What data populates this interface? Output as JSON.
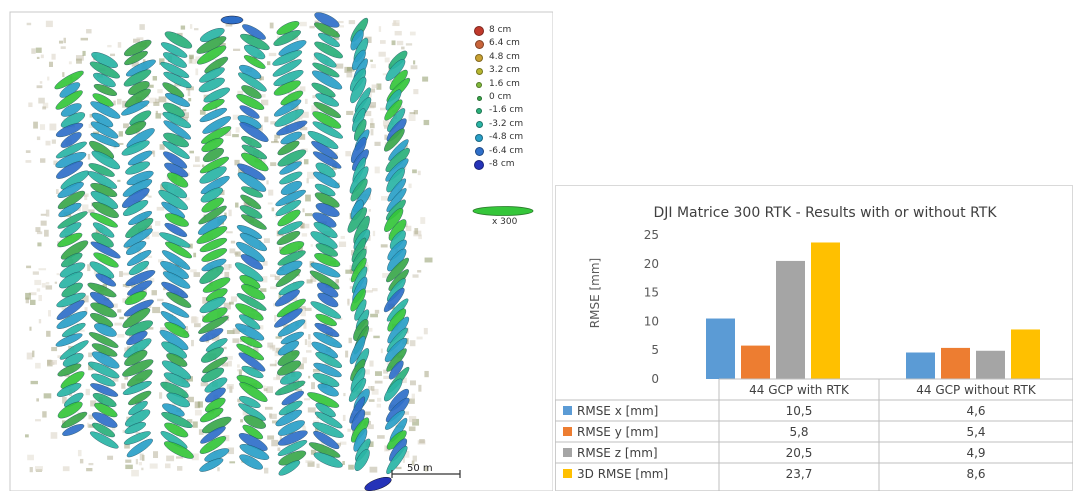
{
  "map": {
    "legend": [
      {
        "label": "8 cm",
        "color": "#c0392b"
      },
      {
        "label": "6.4 cm",
        "color": "#c8643a"
      },
      {
        "label": "4.8 cm",
        "color": "#c9a232"
      },
      {
        "label": "3.2 cm",
        "color": "#b6b630"
      },
      {
        "label": "1.6 cm",
        "color": "#7fb83a"
      },
      {
        "label": "0 cm",
        "color": "#3aa84a"
      },
      {
        "label": "-1.6 cm",
        "color": "#2ab07a"
      },
      {
        "label": "-3.2 cm",
        "color": "#2ab5a5"
      },
      {
        "label": "-4.8 cm",
        "color": "#2aa0c8"
      },
      {
        "label": "-6.4 cm",
        "color": "#2f6fc9"
      },
      {
        "label": "-8 cm",
        "color": "#2533b8"
      }
    ],
    "scale_ellipse_label": "x 300",
    "scale_ellipse_color": "#35c63a",
    "scalebar_label": "50 m"
  },
  "chart_data": {
    "type": "bar",
    "title": "DJI Matrice 300 RTK - Results with or without RTK",
    "ylabel": "RMSE [mm]",
    "ylim": [
      0,
      25
    ],
    "yticks": [
      0,
      5,
      10,
      15,
      20,
      25
    ],
    "categories": [
      "44 GCP with RTK",
      "44 GCP without RTK"
    ],
    "series": [
      {
        "name": "RMSE x [mm]",
        "color": "#5b9bd5",
        "values": [
          10.5,
          4.6
        ],
        "display": [
          "10,5",
          "4,6"
        ]
      },
      {
        "name": "RMSE y [mm]",
        "color": "#ed7d31",
        "values": [
          5.8,
          5.4
        ],
        "display": [
          "5,8",
          "5,4"
        ]
      },
      {
        "name": "RMSE z [mm]",
        "color": "#a5a5a5",
        "values": [
          20.5,
          4.9
        ],
        "display": [
          "20,5",
          "4,9"
        ]
      },
      {
        "name": "3D RMSE [mm]",
        "color": "#ffc000",
        "values": [
          23.7,
          8.6
        ],
        "display": [
          "23,7",
          "8,6"
        ]
      }
    ],
    "grid": false,
    "legend": "table-below"
  }
}
